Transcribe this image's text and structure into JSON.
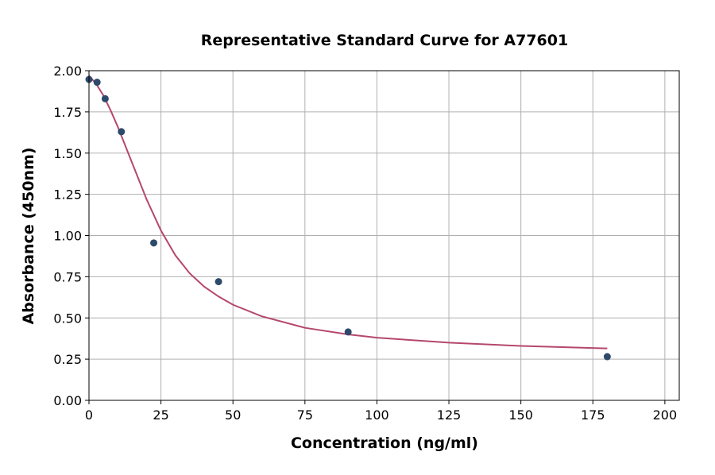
{
  "chart_data": {
    "type": "scatter",
    "title": "Representative Standard Curve for A77601",
    "xlabel": "Concentration (ng/ml)",
    "ylabel": "Absorbance (450nm)",
    "xlim": [
      0,
      205
    ],
    "ylim": [
      0,
      2.0
    ],
    "xticks": [
      0,
      25,
      50,
      75,
      100,
      125,
      150,
      175,
      200
    ],
    "yticks": [
      0.0,
      0.25,
      0.5,
      0.75,
      1.0,
      1.25,
      1.5,
      1.75,
      2.0
    ],
    "ytick_labels": [
      "0.00",
      "0.25",
      "0.50",
      "0.75",
      "1.00",
      "1.25",
      "1.50",
      "1.75",
      "2.00"
    ],
    "grid": true,
    "points": {
      "x": [
        0,
        2.81,
        5.625,
        11.25,
        22.5,
        45,
        90,
        180
      ],
      "y": [
        1.947,
        1.93,
        1.83,
        1.63,
        0.955,
        0.72,
        0.415,
        0.265
      ],
      "color": "#2e4a6b"
    },
    "fit_curve": {
      "x": [
        0,
        2.5,
        5,
        7.5,
        10,
        12.5,
        15,
        17.5,
        20,
        25,
        30,
        35,
        40,
        45,
        50,
        60,
        75,
        90,
        100,
        125,
        150,
        180
      ],
      "y": [
        1.97,
        1.92,
        1.85,
        1.76,
        1.66,
        1.55,
        1.44,
        1.33,
        1.22,
        1.03,
        0.88,
        0.77,
        0.69,
        0.63,
        0.58,
        0.51,
        0.44,
        0.4,
        0.38,
        0.35,
        0.33,
        0.315
      ],
      "color": "#b5476e"
    }
  }
}
